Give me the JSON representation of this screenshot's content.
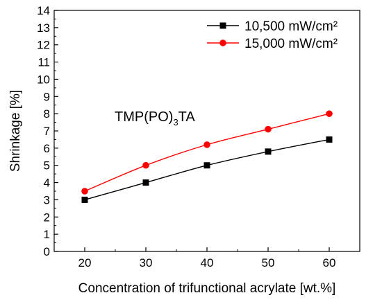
{
  "chart_data": {
    "type": "line",
    "title": "",
    "xlabel": "Concentration of trifunctional acrylate [wt.%]",
    "ylabel": "Shrinkage [%]",
    "xlim": [
      15,
      65
    ],
    "ylim": [
      0,
      14
    ],
    "x": [
      20,
      30,
      40,
      50,
      60
    ],
    "x_ticks": [
      20,
      30,
      40,
      50,
      60
    ],
    "y_ticks": [
      0,
      1,
      2,
      3,
      4,
      5,
      6,
      7,
      8,
      9,
      10,
      11,
      12,
      13,
      14
    ],
    "grid": false,
    "legend_position": "top-right",
    "annotation": {
      "text": "TMP(PO)3TA",
      "main": "TMP(PO)",
      "sub": "3",
      "tail": "TA"
    },
    "series": [
      {
        "name": "10,500 mW/cm²",
        "values": [
          3.0,
          4.0,
          5.0,
          5.8,
          6.5
        ],
        "color": "#000000",
        "marker": "square"
      },
      {
        "name": "15,000 mW/cm²",
        "values": [
          3.5,
          5.0,
          6.2,
          7.1,
          8.0
        ],
        "color": "#ff0000",
        "marker": "circle"
      }
    ]
  }
}
